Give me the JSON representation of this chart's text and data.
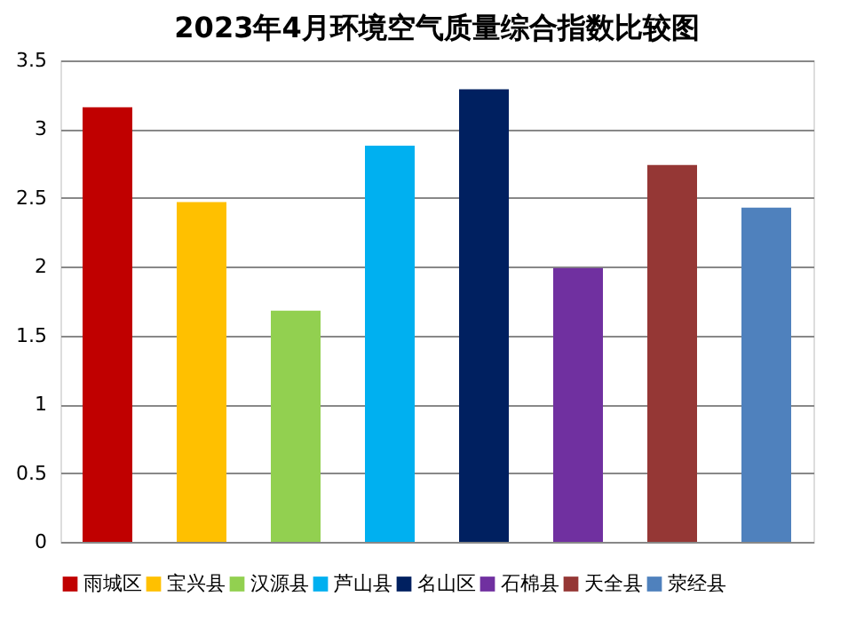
{
  "chart_data": {
    "type": "bar",
    "title": "2023年4月环境空气质量综合指数比较图",
    "categories": [
      null,
      null,
      null,
      null,
      null,
      null,
      null,
      null
    ],
    "series": [
      {
        "name": "雨城区",
        "color": "#c00000",
        "values": [
          3.16,
          null,
          null,
          null,
          null,
          null,
          null,
          null
        ]
      },
      {
        "name": "宝兴县",
        "color": "#ffc000",
        "values": [
          null,
          2.47,
          null,
          null,
          null,
          null,
          null,
          null
        ]
      },
      {
        "name": "汉源县",
        "color": "#92d050",
        "values": [
          null,
          null,
          1.68,
          null,
          null,
          null,
          null,
          null
        ]
      },
      {
        "name": "芦山县",
        "color": "#00b0f0",
        "values": [
          null,
          null,
          null,
          2.88,
          null,
          null,
          null,
          null
        ]
      },
      {
        "name": "名山区",
        "color": "#002060",
        "values": [
          null,
          null,
          null,
          null,
          3.29,
          null,
          null,
          null
        ]
      },
      {
        "name": "石棉县",
        "color": "#7030a0",
        "values": [
          null,
          null,
          null,
          null,
          null,
          1.99,
          null,
          null
        ]
      },
      {
        "name": "天全县",
        "color": "#953735",
        "values": [
          null,
          null,
          null,
          null,
          null,
          null,
          2.74,
          null
        ]
      },
      {
        "name": "荥经县",
        "color": "#4f81bd",
        "values": [
          null,
          null,
          null,
          null,
          null,
          null,
          null,
          2.43
        ]
      }
    ],
    "ylim": [
      0,
      3.5
    ],
    "yticks": [
      0,
      0.5,
      1,
      1.5,
      2,
      2.5,
      3,
      3.5
    ],
    "grid": "y",
    "legend": "bottom",
    "tick_labels": "y"
  }
}
